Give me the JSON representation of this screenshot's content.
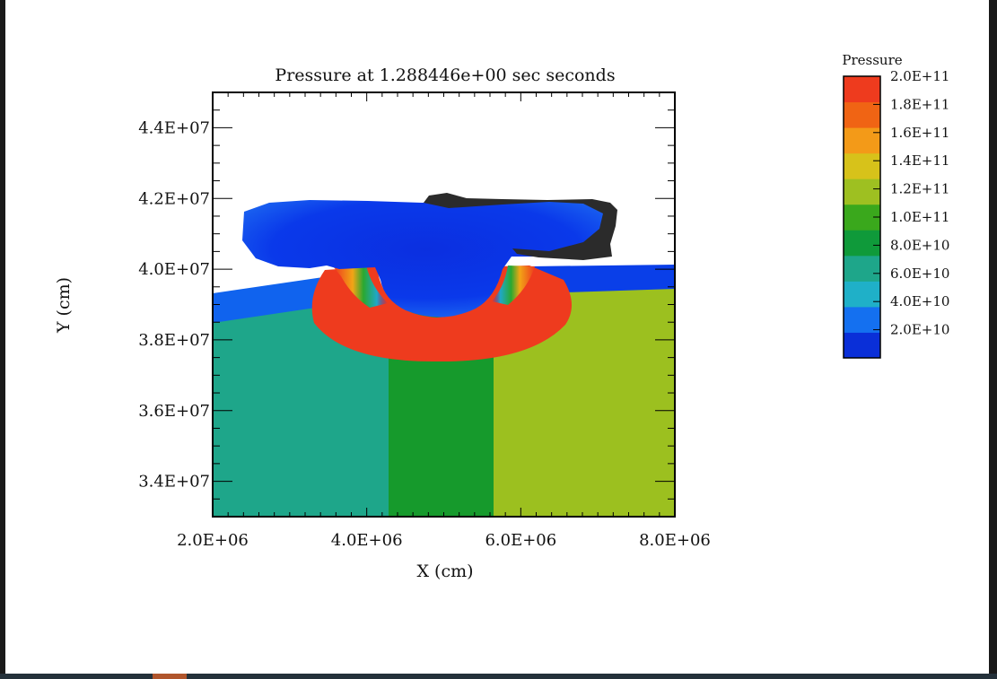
{
  "chart_data": {
    "type": "heatmap",
    "title": "Pressure at 1.288446e+00 sec seconds",
    "xlabel": "X (cm)",
    "ylabel": "Y (cm)",
    "xlim": [
      2000000,
      8000000
    ],
    "ylim": [
      33000000,
      45000000
    ],
    "x_ticks": [
      {
        "value": 2000000,
        "label": "2.0E+06"
      },
      {
        "value": 4000000,
        "label": "4.0E+06"
      },
      {
        "value": 6000000,
        "label": "6.0E+06"
      },
      {
        "value": 8000000,
        "label": "8.0E+06"
      }
    ],
    "y_ticks": [
      {
        "value": 34000000,
        "label": "3.4E+07"
      },
      {
        "value": 36000000,
        "label": "3.6E+07"
      },
      {
        "value": 38000000,
        "label": "3.8E+07"
      },
      {
        "value": 40000000,
        "label": "4.0E+07"
      },
      {
        "value": 42000000,
        "label": "4.2E+07"
      },
      {
        "value": 44000000,
        "label": "4.4E+07"
      }
    ],
    "colorbar": {
      "title": "Pressure",
      "vmin": 0,
      "vmax": 200000000000,
      "ticks": [
        {
          "value": 200000000000,
          "label": "2.0E+11"
        },
        {
          "value": 180000000000,
          "label": "1.8E+11"
        },
        {
          "value": 160000000000,
          "label": "1.6E+11"
        },
        {
          "value": 140000000000,
          "label": "1.4E+11"
        },
        {
          "value": 120000000000,
          "label": "1.2E+11"
        },
        {
          "value": 100000000000,
          "label": "1.0E+11"
        },
        {
          "value": 80000000000,
          "label": "8.0E+10"
        },
        {
          "value": 60000000000,
          "label": "6.0E+10"
        },
        {
          "value": 40000000000,
          "label": "4.0E+10"
        },
        {
          "value": 20000000000,
          "label": "2.0E+10"
        }
      ],
      "colors": [
        "#0a2fd8",
        "#1470f0",
        "#1fb0c8",
        "#1ea68a",
        "#0f9a3a",
        "#3aa81c",
        "#9ec021",
        "#d7c21a",
        "#f39a18",
        "#f06414",
        "#ee3b1e"
      ]
    },
    "regions": [
      {
        "name": "left lower material",
        "pressure": 62000000000,
        "color": "#1ea68a"
      },
      {
        "name": "central column",
        "pressure": 95000000000,
        "color": "#169a2c"
      },
      {
        "name": "right lower material",
        "pressure": 135000000000,
        "color": "#9cc01f"
      },
      {
        "name": "shocked shell",
        "pressure": 200000000000,
        "color": "#ee3b1e"
      },
      {
        "name": "low-pressure plume",
        "pressure": 5000000000,
        "color": "#0a33e6"
      },
      {
        "name": "dark ejecta",
        "color": "#2a2a2a"
      }
    ]
  }
}
